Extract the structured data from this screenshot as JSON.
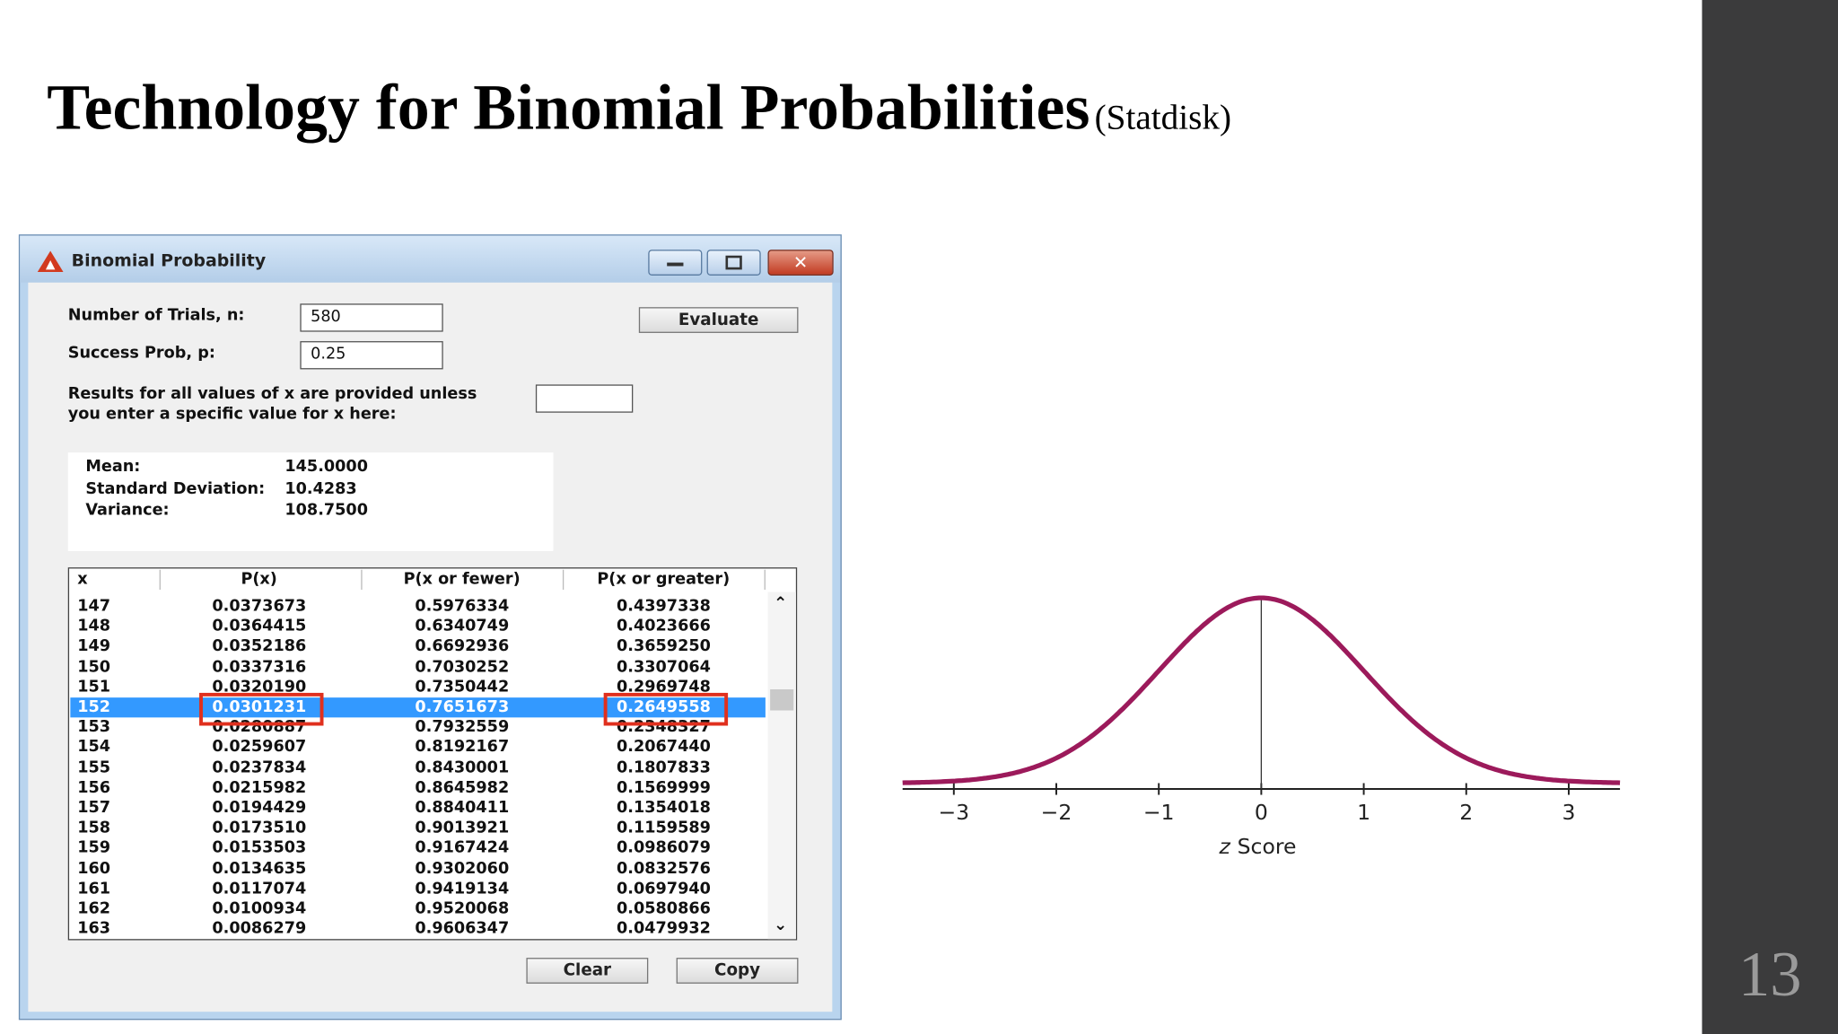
{
  "slide": {
    "title": "Technology for Binomial Probabilities",
    "subtitle": "(Statdisk)",
    "page_number": "13"
  },
  "dialog": {
    "title": "Binomial Probability",
    "fields": [
      {
        "label": "Number of Trials, n:",
        "value": "580"
      },
      {
        "label": "Success Prob, p:",
        "value": "0.25"
      }
    ],
    "x_prompt": [
      "Results for all values of x are provided unless",
      "you enter a specific value for x here:"
    ],
    "evaluate": "Evaluate",
    "stats": [
      {
        "label": "Mean:",
        "value": "145.0000"
      },
      {
        "label": "Standard Deviation:",
        "value": "10.4283"
      },
      {
        "label": "Variance:",
        "value": "108.7500"
      }
    ],
    "table": {
      "columns": [
        "x",
        "P(x)",
        "P(x or fewer)",
        "P(x or greater)"
      ],
      "rows": [
        [
          "147",
          "0.0373673",
          "0.5976334",
          "0.4397338"
        ],
        [
          "148",
          "0.0364415",
          "0.6340749",
          "0.4023666"
        ],
        [
          "149",
          "0.0352186",
          "0.6692936",
          "0.3659250"
        ],
        [
          "150",
          "0.0337316",
          "0.7030252",
          "0.3307064"
        ],
        [
          "151",
          "0.0320190",
          "0.7350442",
          "0.2969748"
        ],
        [
          "152",
          "0.0301231",
          "0.7651673",
          "0.2649558"
        ],
        [
          "153",
          "0.0280887",
          "0.7932559",
          "0.2348327"
        ],
        [
          "154",
          "0.0259607",
          "0.8192167",
          "0.2067440"
        ],
        [
          "155",
          "0.0237834",
          "0.8430001",
          "0.1807833"
        ],
        [
          "156",
          "0.0215982",
          "0.8645982",
          "0.1569999"
        ],
        [
          "157",
          "0.0194429",
          "0.8840411",
          "0.1354018"
        ],
        [
          "158",
          "0.0173510",
          "0.9013921",
          "0.1159589"
        ],
        [
          "159",
          "0.0153503",
          "0.9167424",
          "0.0986079"
        ],
        [
          "160",
          "0.0134635",
          "0.9302060",
          "0.0832576"
        ],
        [
          "161",
          "0.0117074",
          "0.9419134",
          "0.0697940"
        ],
        [
          "162",
          "0.0100934",
          "0.9520068",
          "0.0580866"
        ],
        [
          "163",
          "0.0086279",
          "0.9606347",
          "0.0479932"
        ]
      ],
      "selected_row": 5,
      "boxed_columns": [
        1,
        3
      ]
    },
    "buttons": [
      "Clear",
      "Copy"
    ]
  },
  "figure": {
    "xlim": [
      -3.5,
      3.5
    ],
    "xticks": [
      {
        "value": -3,
        "label": "−3"
      },
      {
        "value": -2,
        "label": "−2"
      },
      {
        "value": -1,
        "label": "−1"
      },
      0,
      1,
      2,
      3
    ],
    "xlabel_var": "z",
    "xlabel": "Score",
    "curve_color": "#9c1a5b"
  }
}
